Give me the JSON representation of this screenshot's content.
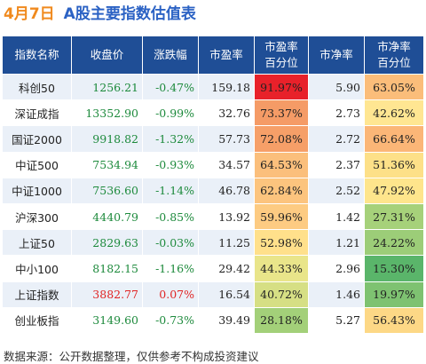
{
  "title": {
    "date": "4月7日",
    "text": "A股主要指数估值表"
  },
  "headers": [
    "指数名称",
    "收盘价",
    "涨跌幅",
    "市盈率",
    "市盈率\n百分位",
    "市净率",
    "市净率\n百分位"
  ],
  "rows": [
    {
      "name": "科创50",
      "close": "1256.21",
      "change": "-0.47%",
      "pe": "159.18",
      "pe_pct": "91.97%",
      "pb": "5.90",
      "pb_pct": "63.05%",
      "pe_color": "#e8212a",
      "pb_color": "#fbbd7a"
    },
    {
      "name": "深证成指",
      "close": "13352.90",
      "change": "-0.99%",
      "pe": "32.76",
      "pe_pct": "73.37%",
      "pb": "2.73",
      "pb_pct": "42.62%",
      "pe_color": "#f59b66",
      "pb_color": "#ffe692"
    },
    {
      "name": "国证2000",
      "close": "9918.82",
      "change": "-1.32%",
      "pe": "57.73",
      "pe_pct": "72.08%",
      "pb": "2.72",
      "pb_pct": "66.64%",
      "pe_color": "#f69f68",
      "pb_color": "#fbb677"
    },
    {
      "name": "中证500",
      "close": "7534.94",
      "change": "-0.93%",
      "pe": "34.57",
      "pe_pct": "64.53%",
      "pb": "2.37",
      "pb_pct": "51.36%",
      "pe_color": "#fbbf7c",
      "pb_color": "#fde088"
    },
    {
      "name": "中证1000",
      "close": "7536.60",
      "change": "-1.14%",
      "pe": "46.78",
      "pe_pct": "62.84%",
      "pb": "2.52",
      "pb_pct": "47.92%",
      "pe_color": "#fcc47e",
      "pb_color": "#fee58c"
    },
    {
      "name": "沪深300",
      "close": "4440.79",
      "change": "-0.85%",
      "pe": "13.92",
      "pe_pct": "59.96%",
      "pb": "1.42",
      "pb_pct": "27.31%",
      "pe_color": "#fdcb82",
      "pb_color": "#a6d17a"
    },
    {
      "name": "上证50",
      "close": "2829.63",
      "change": "-0.03%",
      "pe": "11.25",
      "pe_pct": "52.98%",
      "pb": "1.21",
      "pb_pct": "24.22%",
      "pe_color": "#ffe08b",
      "pb_color": "#9ccd78"
    },
    {
      "name": "中小100",
      "close": "8182.15",
      "change": "-1.16%",
      "pe": "29.42",
      "pe_pct": "44.33%",
      "pb": "2.96",
      "pb_pct": "15.30%",
      "pe_color": "#e9e58a",
      "pb_color": "#5ab56a"
    },
    {
      "name": "上证指数",
      "close": "3882.77",
      "change": "0.07%",
      "pe": "16.54",
      "pe_pct": "40.72%",
      "pb": "1.46",
      "pb_pct": "19.97%",
      "pe_color": "#d6df84",
      "pb_color": "#7ec271"
    },
    {
      "name": "创业板指",
      "close": "3149.60",
      "change": "-0.73%",
      "pe": "39.49",
      "pe_pct": "28.18%",
      "pb": "5.27",
      "pb_pct": "56.43%",
      "pe_color": "#a3d079",
      "pb_color": "#fdd886"
    }
  ],
  "footer": "数据来源：公开数据整理，仅供参考不构成投资建议",
  "colors": {
    "header_bg": "#1f4e96",
    "title_blue": "#2b62c4",
    "date_orange": "#f08a1e",
    "positive": "#e02424",
    "negative": "#1d8a3c",
    "stripe": "#eaf0f8"
  }
}
